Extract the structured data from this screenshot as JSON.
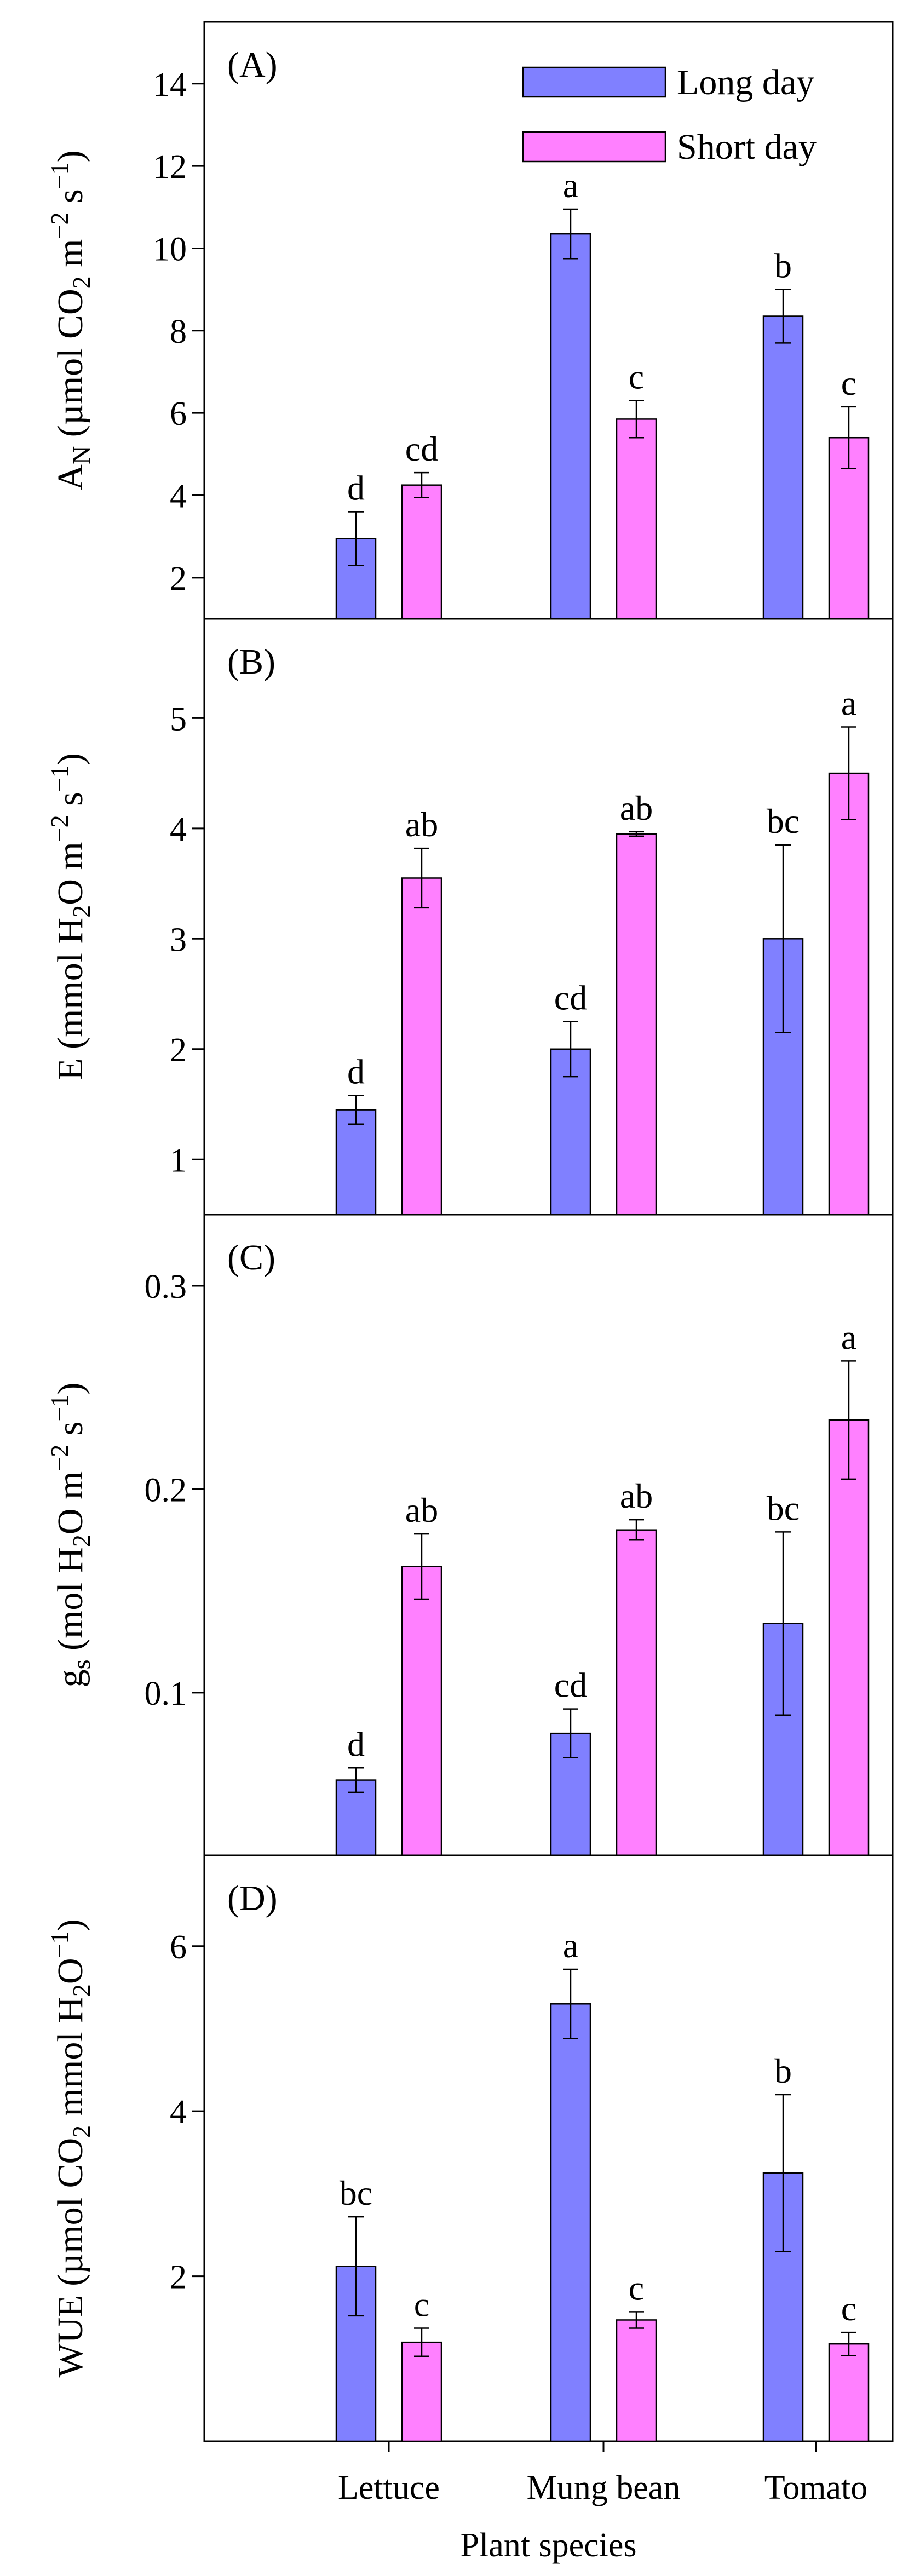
{
  "colors": {
    "long_day": "#8080ff",
    "short_day": "#ff80ff",
    "axis": "#000000",
    "background": "#ffffff"
  },
  "chart_data": {
    "type": "bar",
    "title": "",
    "xlabel": "Plant species",
    "categories": [
      "Lettuce",
      "Mung bean",
      "Tomato"
    ],
    "legend": {
      "placement": "top-right",
      "entries": [
        "Long day",
        "Short day"
      ]
    },
    "panels": [
      {
        "id": "A",
        "tag": "(A)",
        "ylabel": {
          "base": "A",
          "sub": "N",
          "rest": " (µmol CO",
          "sub2": "2",
          "rest2": " m",
          "sup1": "−2",
          "rest3": " s",
          "sup2": "−1",
          "end": ")"
        },
        "ylim": [
          1,
          15.5
        ],
        "yticks": [
          2,
          4,
          6,
          8,
          10,
          12,
          14
        ],
        "tick_labels": [
          "2",
          "4",
          "6",
          "8",
          "10",
          "12",
          "14"
        ],
        "series": [
          {
            "name": "Long day",
            "values": [
              2.95,
              10.35,
              8.35
            ],
            "errors": [
              0.65,
              0.6,
              0.65
            ],
            "letters": [
              "d",
              "a",
              "b"
            ]
          },
          {
            "name": "Short day",
            "values": [
              4.25,
              5.85,
              5.4
            ],
            "errors": [
              0.3,
              0.45,
              0.75
            ],
            "letters": [
              "cd",
              "c",
              "c"
            ]
          }
        ]
      },
      {
        "id": "B",
        "tag": "(B)",
        "ylabel": {
          "base": "E",
          "sub": "",
          "rest": " (mmol H",
          "sub2": "2",
          "rest2": "O m",
          "sup1": "−2",
          "rest3": " s",
          "sup2": "−1",
          "end": ")"
        },
        "ylim": [
          0.5,
          5.9
        ],
        "yticks": [
          1,
          2,
          3,
          4,
          5
        ],
        "tick_labels": [
          "1",
          "2",
          "3",
          "4",
          "5"
        ],
        "series": [
          {
            "name": "Long day",
            "values": [
              1.45,
              2.0,
              3.0
            ],
            "errors": [
              0.13,
              0.25,
              0.85
            ],
            "letters": [
              "d",
              "cd",
              "bc"
            ]
          },
          {
            "name": "Short day",
            "values": [
              3.55,
              3.95,
              4.5
            ],
            "errors": [
              0.27,
              0.02,
              0.42
            ],
            "letters": [
              "ab",
              "ab",
              "a"
            ]
          }
        ]
      },
      {
        "id": "C",
        "tag": "(C)",
        "ylabel": {
          "base": "g",
          "sub": "s",
          "rest": " (mol H",
          "sub2": "2",
          "rest2": "O m",
          "sup1": "−2",
          "rest3": " s",
          "sup2": "−1",
          "end": ")"
        },
        "ylim": [
          0.02,
          0.335
        ],
        "yticks": [
          0.1,
          0.2,
          0.3
        ],
        "tick_labels": [
          "0.1",
          "0.2",
          "0.3"
        ],
        "series": [
          {
            "name": "Long day",
            "values": [
              0.057,
              0.08,
              0.134
            ],
            "errors": [
              0.006,
              0.012,
              0.045
            ],
            "letters": [
              "d",
              "cd",
              "bc"
            ]
          },
          {
            "name": "Short day",
            "values": [
              0.162,
              0.18,
              0.234
            ],
            "errors": [
              0.016,
              0.005,
              0.029
            ],
            "letters": [
              "ab",
              "ab",
              "a"
            ]
          }
        ]
      },
      {
        "id": "D",
        "tag": "(D)",
        "ylabel": {
          "base": "WUE",
          "sub": "",
          "rest": " (µmol CO",
          "sub2": "2",
          "rest2": " mmol H",
          "sup1": "",
          "rest3": "",
          "sub3": "2",
          "rest4": "O",
          "sup2": "−1",
          "end": ")"
        },
        "ylim": [
          0,
          7.1
        ],
        "yticks": [
          2,
          4,
          6
        ],
        "tick_labels": [
          "2",
          "4",
          "6"
        ],
        "series": [
          {
            "name": "Long day",
            "values": [
              2.12,
              5.3,
              3.25
            ],
            "errors": [
              0.6,
              0.42,
              0.95
            ],
            "letters": [
              "bc",
              "a",
              "b"
            ]
          },
          {
            "name": "Short day",
            "values": [
              1.2,
              1.47,
              1.18
            ],
            "errors": [
              0.17,
              0.1,
              0.14
            ],
            "letters": [
              "c",
              "c",
              "c"
            ]
          }
        ]
      }
    ]
  }
}
